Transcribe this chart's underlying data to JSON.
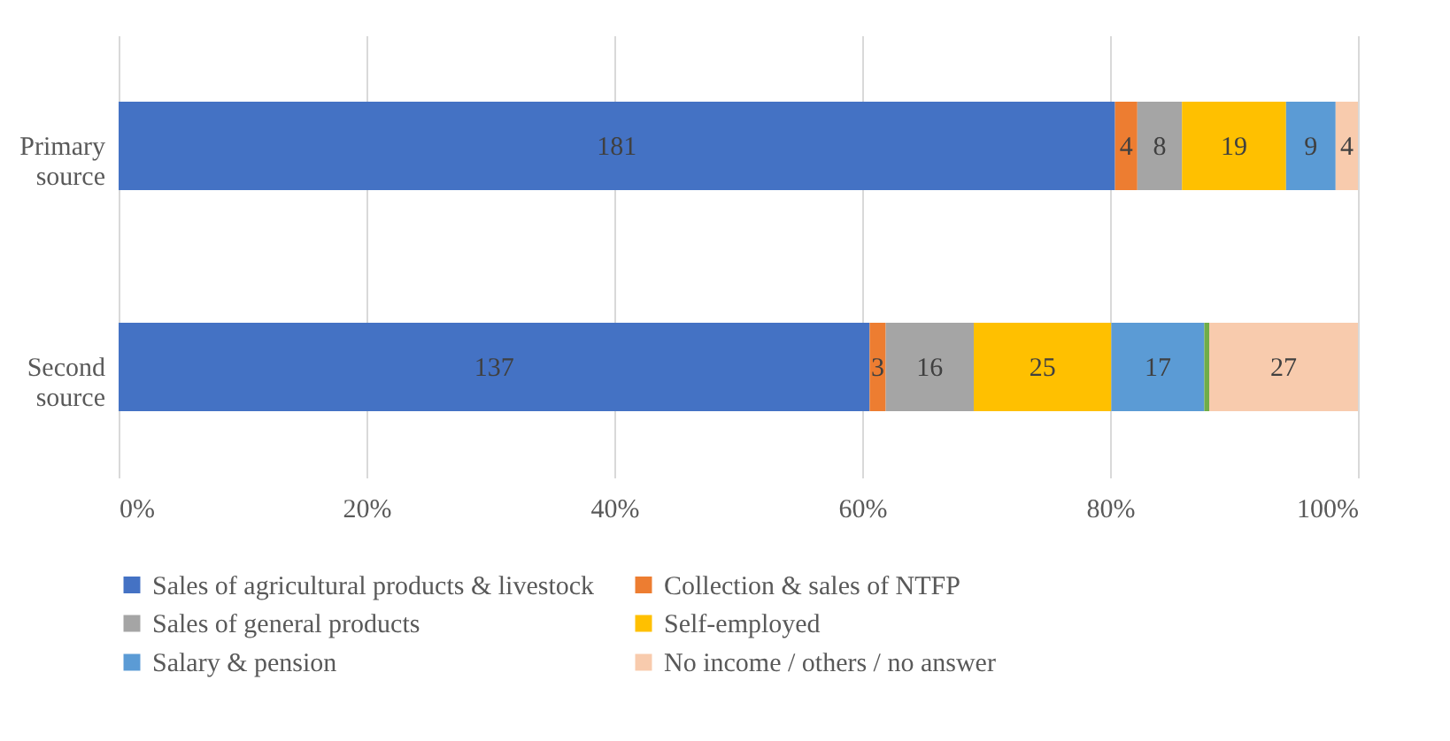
{
  "chart_data": {
    "type": "bar",
    "orientation": "horizontal",
    "stacked": true,
    "categories": [
      "Primary source",
      "Second source"
    ],
    "series": [
      {
        "name": "Sales of agricultural products & livestock",
        "color": "#4472c4",
        "values": [
          80.4,
          60.6
        ]
      },
      {
        "name": "Collection & sales of NTFP",
        "color": "#ed7d31",
        "values": [
          1.8,
          1.3
        ]
      },
      {
        "name": "Sales of general products",
        "color": "#a5a5a5",
        "values": [
          3.6,
          7.1
        ]
      },
      {
        "name": "Self-employed",
        "color": "#ffc000",
        "values": [
          8.4,
          11.1
        ]
      },
      {
        "name": "Salary & pension",
        "color": "#5b9bd5",
        "values": [
          4.0,
          7.5
        ]
      },
      {
        "color": "#70ad47",
        "values": [
          null,
          0.4
        ]
      },
      {
        "name": "No income / others / no answer",
        "color": "#f8cbad",
        "values": [
          1.8,
          12.0
        ]
      }
    ],
    "annotations": [
      "181",
      {
        "text": "4",
        "x": 82.2,
        "y": "Primary source"
      },
      {
        "text": "8",
        "x": 85.8,
        "y": "Primary source"
      },
      {
        "text": "19",
        "x": 94.2,
        "y": "Primary source"
      },
      {
        "text": "9",
        "x": 98.2,
        "y": "Primary source"
      },
      {
        "text": "4",
        "x": 100.0,
        "y": "Primary source"
      },
      "137",
      {
        "text": "3",
        "x": 61.9,
        "y": "Second source"
      },
      {
        "text": "16",
        "x": 69.0,
        "y": "Second source"
      },
      {
        "text": "25",
        "x": 80.1,
        "y": "Second source"
      },
      {
        "text": "17",
        "x": 87.6,
        "y": "Second source"
      },
      {
        "text": "27",
        "x": 100.0,
        "y": "Second source"
      }
    ],
    "xlim": [
      0,
      100
    ],
    "xticks": [
      {
        "value": 0,
        "label": "0%"
      },
      {
        "value": 20,
        "label": "20%"
      },
      {
        "value": 40,
        "label": "40%"
      },
      {
        "value": 60,
        "label": "60%"
      },
      {
        "value": 80,
        "label": "80%"
      },
      {
        "value": 100,
        "label": "100%"
      }
    ],
    "grid": "x",
    "legend": "bottom"
  }
}
